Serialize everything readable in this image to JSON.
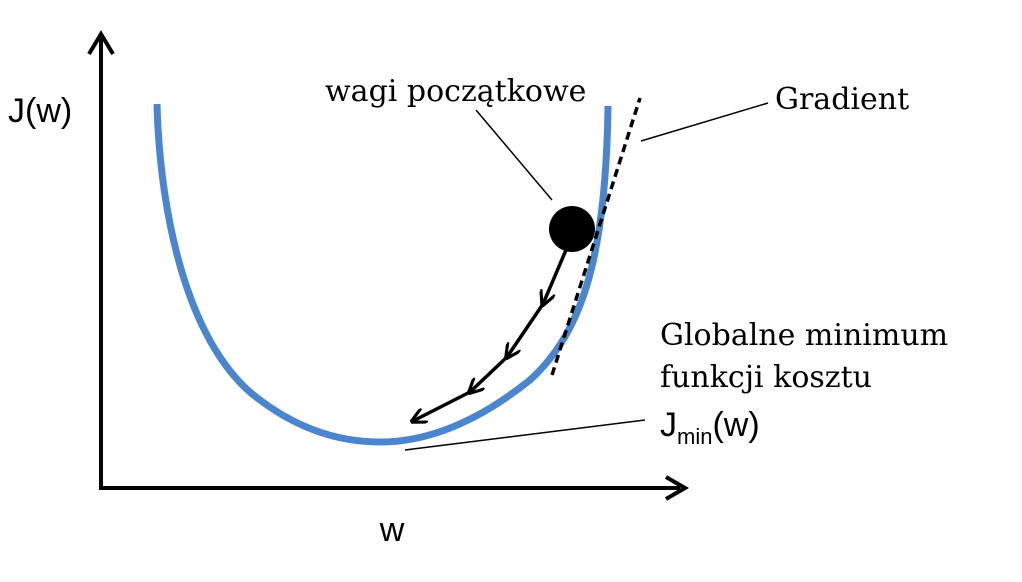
{
  "axes": {
    "y_label": "J(w)",
    "x_label": "w"
  },
  "annotations": {
    "initial_weights": "wagi początkowe",
    "gradient": "Gradient",
    "global_min_line1": "Globalne minimum",
    "global_min_line2": "funkcji kosztu",
    "jmin_main": "J",
    "jmin_sub": "min",
    "jmin_arg": "(w)"
  },
  "colors": {
    "curve": "#4a86cf",
    "ink": "#000000",
    "background": "#ffffff"
  },
  "icons": {
    "descent_steps": "arrow-icon",
    "initial_point": "filled-circle"
  }
}
